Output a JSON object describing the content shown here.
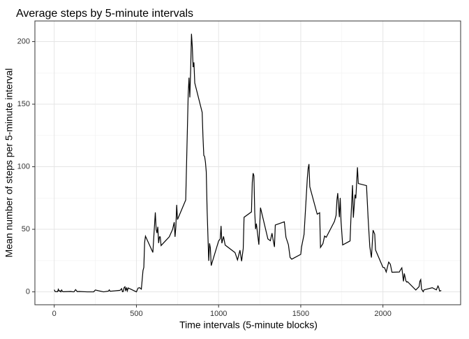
{
  "chart_data": {
    "type": "line",
    "title": "Average steps by 5-minute intervals",
    "x_label": "Time intervals (5-minute blocks)",
    "y_label": "Mean number of steps per 5-minute interval",
    "x": [
      0,
      5,
      10,
      15,
      20,
      25,
      30,
      35,
      40,
      45,
      50,
      55,
      100,
      110,
      120,
      130,
      140,
      150,
      200,
      230,
      240,
      250,
      300,
      330,
      335,
      340,
      400,
      410,
      415,
      420,
      425,
      430,
      435,
      440,
      445,
      450,
      500,
      510,
      520,
      530,
      540,
      545,
      550,
      555,
      600,
      615,
      620,
      625,
      630,
      635,
      640,
      645,
      650,
      700,
      720,
      730,
      735,
      740,
      745,
      750,
      800,
      810,
      815,
      820,
      825,
      830,
      835,
      840,
      845,
      850,
      855,
      900,
      905,
      910,
      915,
      920,
      925,
      930,
      935,
      940,
      945,
      950,
      955,
      1000,
      1010,
      1015,
      1020,
      1030,
      1040,
      1100,
      1115,
      1130,
      1140,
      1150,
      1155,
      1200,
      1205,
      1210,
      1215,
      1220,
      1225,
      1230,
      1245,
      1255,
      1300,
      1315,
      1325,
      1330,
      1340,
      1345,
      1400,
      1410,
      1425,
      1435,
      1445,
      1500,
      1505,
      1520,
      1540,
      1545,
      1550,
      1555,
      1600,
      1615,
      1620,
      1635,
      1645,
      1655,
      1705,
      1715,
      1720,
      1725,
      1730,
      1735,
      1740,
      1745,
      1755,
      1800,
      1805,
      1815,
      1820,
      1830,
      1835,
      1845,
      1850,
      1900,
      1910,
      1920,
      1930,
      1940,
      1950,
      1955,
      2000,
      2010,
      2020,
      2035,
      2045,
      2055,
      2100,
      2105,
      2115,
      2125,
      2130,
      2140,
      2145,
      2150,
      2200,
      2220,
      2225,
      2230,
      2235,
      2245,
      2250,
      2300,
      2325,
      2335,
      2340,
      2345,
      2355
    ],
    "series": [
      {
        "color": "#000000",
        "values": [
          1.7,
          0.3,
          0.1,
          0.2,
          0.1,
          2.1,
          0.5,
          0.9,
          0,
          1.5,
          0.3,
          0.1,
          0.3,
          0.1,
          0,
          1.8,
          0.2,
          0.3,
          0,
          0,
          0,
          1.5,
          0,
          0.6,
          1.6,
          0.5,
          1.2,
          2.6,
          0.1,
          0.3,
          3.4,
          4.1,
          0.7,
          3.5,
          0.8,
          3.1,
          0,
          3,
          3.3,
          2.2,
          17,
          19.5,
          39.5,
          44.5,
          31.5,
          63.5,
          50,
          47,
          52,
          39,
          44,
          44,
          37,
          44,
          49.9,
          55.7,
          44,
          52,
          69.5,
          57.8,
          73.4,
          129.4,
          157.5,
          171.2,
          155.4,
          177.3,
          206.2,
          195.9,
          179.6,
          183.4,
          167,
          143.5,
          124,
          109.1,
          108.1,
          103.7,
          95.9,
          66.2,
          45.2,
          24.8,
          38.8,
          35,
          21,
          40.6,
          42.4,
          52.7,
          38.9,
          44.3,
          37.4,
          31.4,
          25.5,
          33.3,
          24.5,
          34.7,
          59.6,
          63.9,
          87.6,
          94.8,
          92.8,
          63.4,
          50.2,
          54.5,
          37.7,
          67.3,
          42.3,
          40.9,
          46.9,
          42.9,
          35.9,
          53.4,
          56,
          43.6,
          37.6,
          27.5,
          26.1,
          30,
          36,
          45.9,
          91,
          98.7,
          102.1,
          84,
          62.1,
          63.2,
          35.5,
          38.6,
          44.6,
          43.6,
          56.3,
          61.2,
          73.4,
          78.9,
          68.9,
          59.7,
          75.1,
          56.5,
          37.5,
          40.7,
          58,
          85.3,
          59.3,
          77.7,
          74.7,
          99.5,
          86.6,
          84.9,
          58.5,
          36.1,
          27.4,
          49.3,
          46.1,
          33.5,
          19.6,
          19.3,
          15.9,
          23.8,
          22.1,
          15.7,
          15.9,
          17.2,
          19.2,
          8.4,
          14.7,
          8.7,
          7.8,
          8.1,
          1.5,
          4.2,
          8.5,
          9.8,
          2.2,
          0.1,
          1.6,
          3.3,
          1.6,
          4.7,
          3.3,
          0.6,
          1.1
        ]
      }
    ],
    "xlim": [
      -117.75,
      2472.75
    ],
    "xticks": [
      0,
      500,
      1000,
      1500,
      2000
    ],
    "x_minor_grid": [
      250,
      750,
      1250,
      1750,
      2250
    ],
    "ylim": [
      -10.3,
      216.5
    ],
    "yticks": [
      0,
      50,
      100,
      150,
      200
    ],
    "y_minor_grid": [
      25,
      75,
      125,
      175
    ],
    "grid": true
  }
}
